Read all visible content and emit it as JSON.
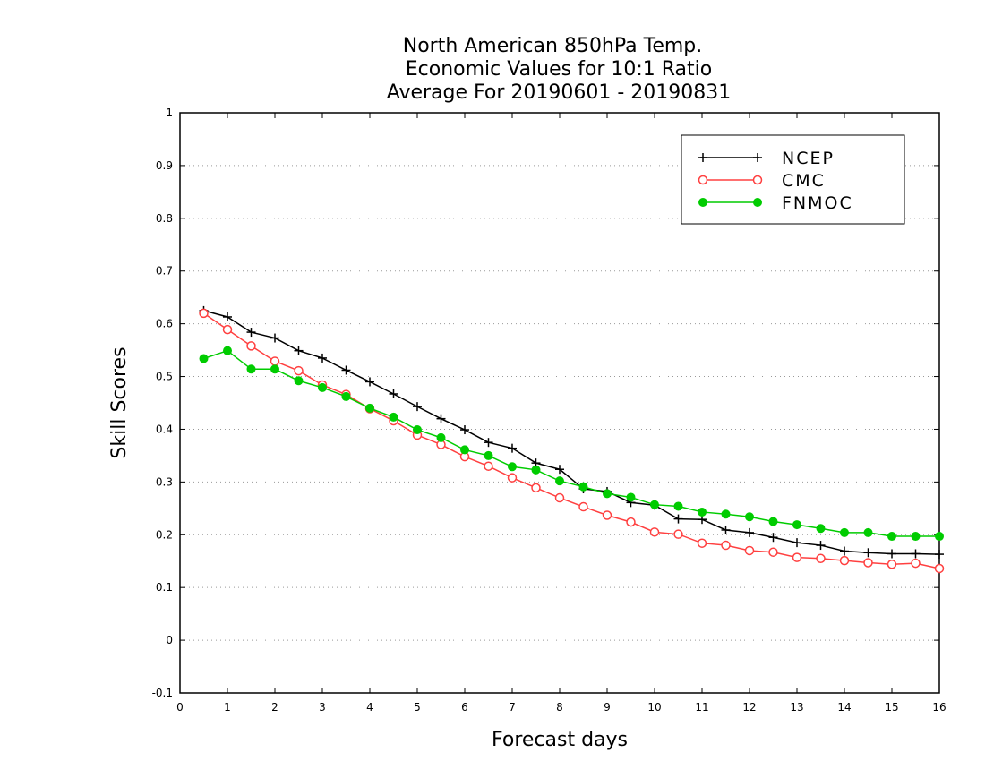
{
  "chart_data": {
    "type": "line",
    "title": [
      "North American 850hPa Temp.",
      "Economic Values for 10:1 Ratio",
      "Average For 20190601 - 20190831"
    ],
    "xlabel": "Forecast days",
    "ylabel": "Skill Scores",
    "xlim": [
      0,
      16
    ],
    "ylim": [
      -0.1,
      1
    ],
    "xticks": [
      "0",
      "1",
      "2",
      "3",
      "4",
      "5",
      "6",
      "7",
      "8",
      "9",
      "10",
      "11",
      "12",
      "13",
      "14",
      "15",
      "16"
    ],
    "yticks": [
      "-0.1",
      "0",
      "0.1",
      "0.2",
      "0.3",
      "0.4",
      "0.5",
      "0.6",
      "0.7",
      "0.8",
      "0.9",
      "1"
    ],
    "grid": "horizontal dotted",
    "legend_position": "top-right",
    "x": [
      0.5,
      1,
      1.5,
      2,
      2.5,
      3,
      3.5,
      4,
      4.5,
      5,
      5.5,
      6,
      6.5,
      7,
      7.5,
      8,
      8.5,
      9,
      9.5,
      10,
      10.5,
      11,
      11.5,
      12,
      12.5,
      13,
      13.5,
      14,
      14.5,
      15,
      15.5,
      16
    ],
    "series": [
      {
        "name": "NCEP",
        "color": "#000000",
        "marker": "plus",
        "values": [
          0.625,
          0.613,
          0.584,
          0.573,
          0.549,
          0.535,
          0.512,
          0.49,
          0.467,
          0.443,
          0.42,
          0.399,
          0.375,
          0.364,
          0.336,
          0.324,
          0.287,
          0.282,
          0.261,
          0.256,
          0.23,
          0.229,
          0.209,
          0.204,
          0.195,
          0.185,
          0.18,
          0.169,
          0.166,
          0.164,
          0.164,
          0.163
        ]
      },
      {
        "name": "CMC",
        "color": "#ff4040",
        "marker": "open-circle",
        "values": [
          0.62,
          0.589,
          0.558,
          0.529,
          0.511,
          0.484,
          0.466,
          0.439,
          0.416,
          0.389,
          0.371,
          0.348,
          0.33,
          0.308,
          0.289,
          0.27,
          0.253,
          0.237,
          0.224,
          0.205,
          0.201,
          0.184,
          0.18,
          0.17,
          0.167,
          0.157,
          0.155,
          0.151,
          0.147,
          0.144,
          0.146,
          0.136
        ]
      },
      {
        "name": "FNMOC",
        "color": "#00cc00",
        "marker": "filled-circle",
        "values": [
          0.534,
          0.549,
          0.514,
          0.514,
          0.492,
          0.479,
          0.462,
          0.44,
          0.423,
          0.399,
          0.384,
          0.361,
          0.35,
          0.329,
          0.323,
          0.302,
          0.291,
          0.278,
          0.271,
          0.257,
          0.254,
          0.243,
          0.239,
          0.234,
          0.225,
          0.219,
          0.212,
          0.204,
          0.204,
          0.197,
          0.197,
          0.197
        ]
      }
    ]
  }
}
